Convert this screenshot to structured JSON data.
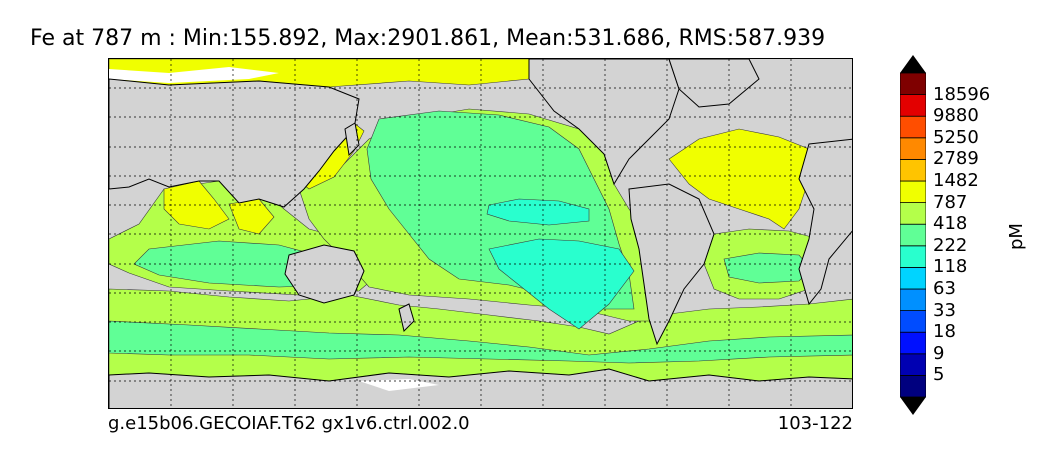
{
  "title": "Fe at 787 m : Min:155.892, Max:2901.861, Mean:531.686, RMS:587.939",
  "footer": {
    "case_name": "g.e15b06.GECOIAF.T62 gx1v6.ctrl.002.0",
    "years": "103-122"
  },
  "colorbar": {
    "unit": "pM",
    "levels": [
      "5",
      "9",
      "18",
      "33",
      "63",
      "118",
      "222",
      "418",
      "787",
      "1482",
      "2789",
      "5250",
      "9880",
      "18596"
    ],
    "colors": [
      "#00007f",
      "#0000b2",
      "#0010ff",
      "#004cff",
      "#0090ff",
      "#00d4ff",
      "#29ffce",
      "#60ff96",
      "#b4ff4a",
      "#f0ff00",
      "#ffc400",
      "#ff8900",
      "#ff4e00",
      "#e30000",
      "#7f0000"
    ]
  },
  "map": {
    "land_color": "#d3d3d3",
    "ice_color": "#ffffff"
  }
}
